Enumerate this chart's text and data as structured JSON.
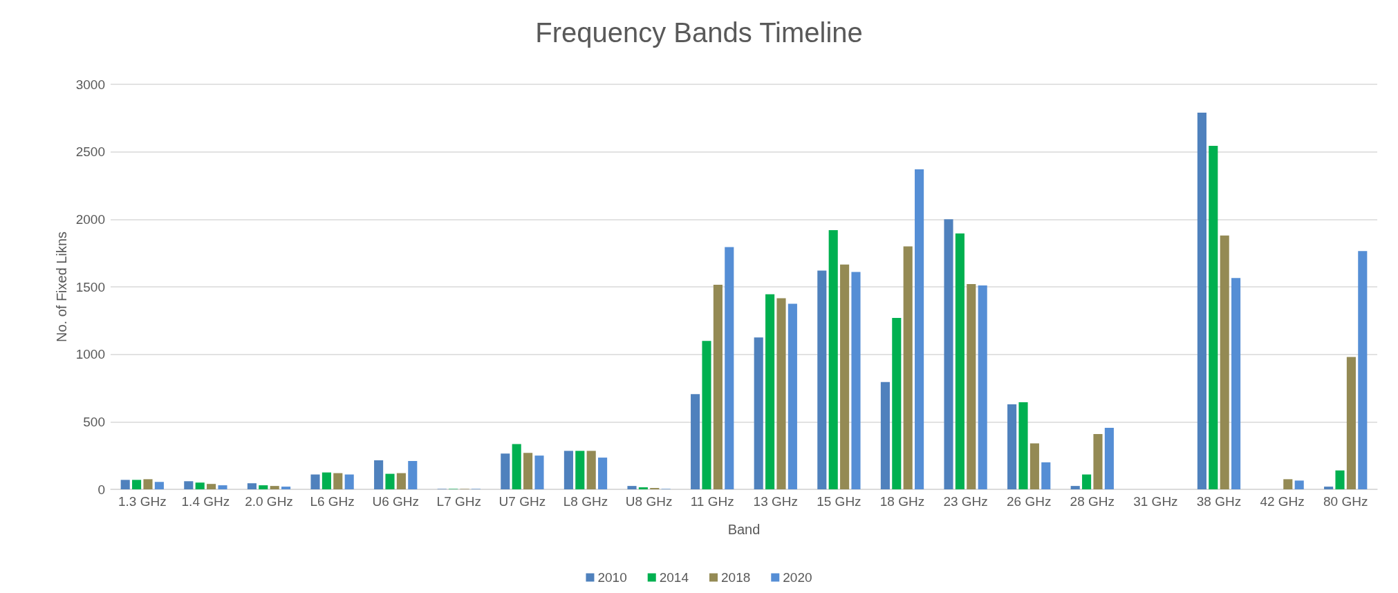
{
  "chart_data": {
    "type": "bar",
    "title": "Frequency Bands Timeline",
    "xlabel": "Band",
    "ylabel": "No. of Fixed Likns",
    "categories": [
      "1.3 GHz",
      "1.4 GHz",
      "2.0 GHz",
      "L6 GHz",
      "U6 GHz",
      "L7 GHz",
      "U7 GHz",
      "L8 GHz",
      "U8 GHz",
      "11 GHz",
      "13 GHz",
      "15 GHz",
      "18 GHz",
      "23 GHz",
      "26 GHz",
      "28 GHz",
      "31 GHz",
      "38 GHz",
      "42 GHz",
      "80 GHz"
    ],
    "series": [
      {
        "name": "2010",
        "color": "#4f81bd",
        "values": [
          70,
          60,
          45,
          110,
          215,
          3,
          265,
          285,
          25,
          705,
          1125,
          1620,
          795,
          2000,
          630,
          25,
          0,
          2790,
          0,
          20
        ]
      },
      {
        "name": "2014",
        "color": "#00b050",
        "values": [
          70,
          50,
          30,
          125,
          115,
          3,
          335,
          285,
          15,
          1100,
          1445,
          1920,
          1270,
          1895,
          645,
          110,
          0,
          2545,
          0,
          140
        ]
      },
      {
        "name": "2018",
        "color": "#948a54",
        "values": [
          75,
          40,
          25,
          120,
          120,
          3,
          270,
          285,
          10,
          1515,
          1415,
          1665,
          1800,
          1520,
          340,
          410,
          0,
          1880,
          75,
          980
        ]
      },
      {
        "name": "2020",
        "color": "#558ed5",
        "values": [
          55,
          30,
          20,
          110,
          210,
          3,
          250,
          235,
          3,
          1795,
          1375,
          1610,
          2370,
          1510,
          200,
          455,
          0,
          1565,
          65,
          1765
        ]
      }
    ],
    "ylim": [
      0,
      3000
    ],
    "yticks": [
      0,
      500,
      1000,
      1500,
      2000,
      2500,
      3000
    ],
    "grid": "y",
    "legend": "bottom"
  }
}
